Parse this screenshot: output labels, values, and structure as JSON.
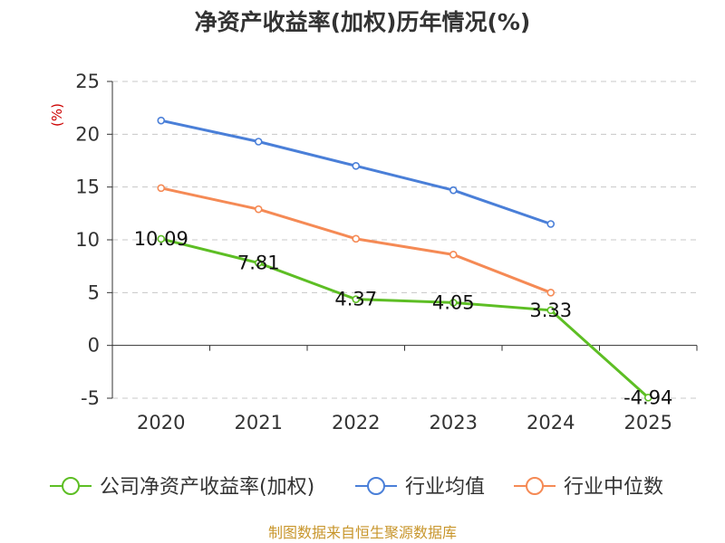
{
  "chart_data": {
    "type": "line",
    "title": "净资产收益率(加权)历年情况(%)",
    "ylabel": "(%)",
    "xlabel": "",
    "categories": [
      "2020",
      "2021",
      "2022",
      "2023",
      "2024",
      "2025"
    ],
    "ylim": [
      -5,
      25
    ],
    "yticks": [
      -5,
      0,
      5,
      10,
      15,
      20,
      25
    ],
    "grid": true,
    "legend_position": "bottom",
    "series": [
      {
        "name": "公司净资产收益率(加权)",
        "color": "#5dbe24",
        "values": [
          10.09,
          7.81,
          4.37,
          4.05,
          3.33,
          -4.94
        ],
        "labels": [
          "10.09",
          "7.81",
          "4.37",
          "4.05",
          "3.33",
          "-4.94"
        ]
      },
      {
        "name": "行业均值",
        "color": "#4a7fd8",
        "values": [
          21.3,
          19.3,
          17.0,
          14.7,
          11.5,
          null
        ]
      },
      {
        "name": "行业中位数",
        "color": "#f58a55",
        "values": [
          14.9,
          12.9,
          10.1,
          8.6,
          5.0,
          null
        ]
      }
    ]
  },
  "source": "制图数据来自恒生聚源数据库"
}
